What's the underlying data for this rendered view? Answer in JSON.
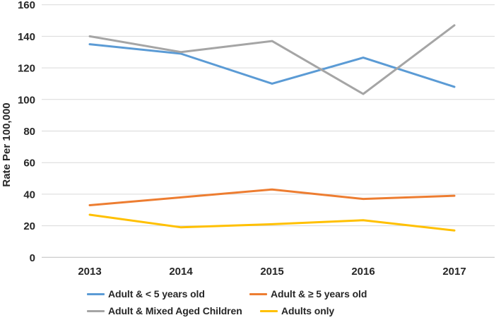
{
  "chart_data": {
    "type": "line",
    "title": "",
    "xlabel": "",
    "ylabel": "Rate Per 100,000",
    "categories": [
      "2013",
      "2014",
      "2015",
      "2016",
      "2017"
    ],
    "ylim": [
      0,
      160
    ],
    "ytick_step": 20,
    "grid": "horizontal",
    "legend_position": "bottom",
    "text_color": "#262626",
    "gridline_color": "#d9d9d9",
    "axis_line_color": "#bfbfbf",
    "series": [
      {
        "name": "Adult & < 5 years old",
        "color": "#5B9BD5",
        "values": [
          135,
          129,
          110,
          126.5,
          108
        ]
      },
      {
        "name": "Adult & ≥ 5 years old",
        "color": "#ED7D31",
        "values": [
          33,
          38,
          43,
          37,
          39
        ]
      },
      {
        "name": "Adult & Mixed Aged Children",
        "color": "#A5A5A5",
        "values": [
          140,
          130,
          137,
          103.5,
          147
        ]
      },
      {
        "name": "Adults only",
        "color": "#FFC000",
        "values": [
          27,
          19,
          21,
          23.5,
          17
        ]
      }
    ]
  }
}
